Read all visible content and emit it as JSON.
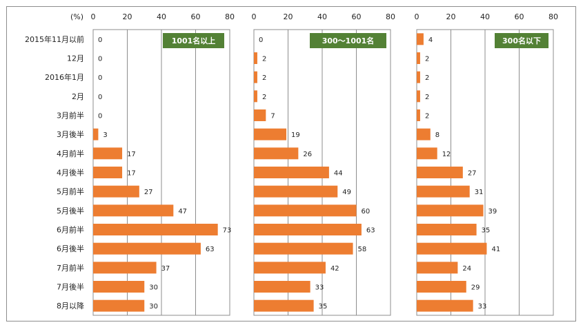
{
  "unit_label": "(%)",
  "colors": {
    "bar": "#ed7d31",
    "title_bg": "#538135",
    "title_text": "#ffffff",
    "grid": "#8c8c8c",
    "panel_border": "#8c8c8c"
  },
  "chart_data": {
    "type": "bar",
    "orientation": "horizontal",
    "categories": [
      "2015年11月以前",
      "12月",
      "2016年1月",
      "2月",
      "3月前半",
      "3月後半",
      "4月前半",
      "4月後半",
      "5月前半",
      "5月後半",
      "6月前半",
      "6月後半",
      "7月前半",
      "7月後半",
      "8月以降"
    ],
    "xlim": [
      0,
      80
    ],
    "xticks": [
      0,
      20,
      40,
      60,
      80
    ],
    "grid": true,
    "panels": [
      {
        "title": "1001名以上",
        "values": [
          0,
          0,
          0,
          0,
          0,
          3,
          17,
          17,
          27,
          47,
          73,
          63,
          37,
          30,
          30
        ]
      },
      {
        "title": "300～1001名",
        "values": [
          0,
          2,
          2,
          2,
          7,
          19,
          26,
          44,
          49,
          60,
          63,
          58,
          42,
          33,
          35
        ]
      },
      {
        "title": "300名以下",
        "values": [
          4,
          2,
          2,
          2,
          2,
          8,
          12,
          27,
          31,
          39,
          35,
          41,
          24,
          29,
          33
        ]
      }
    ]
  }
}
